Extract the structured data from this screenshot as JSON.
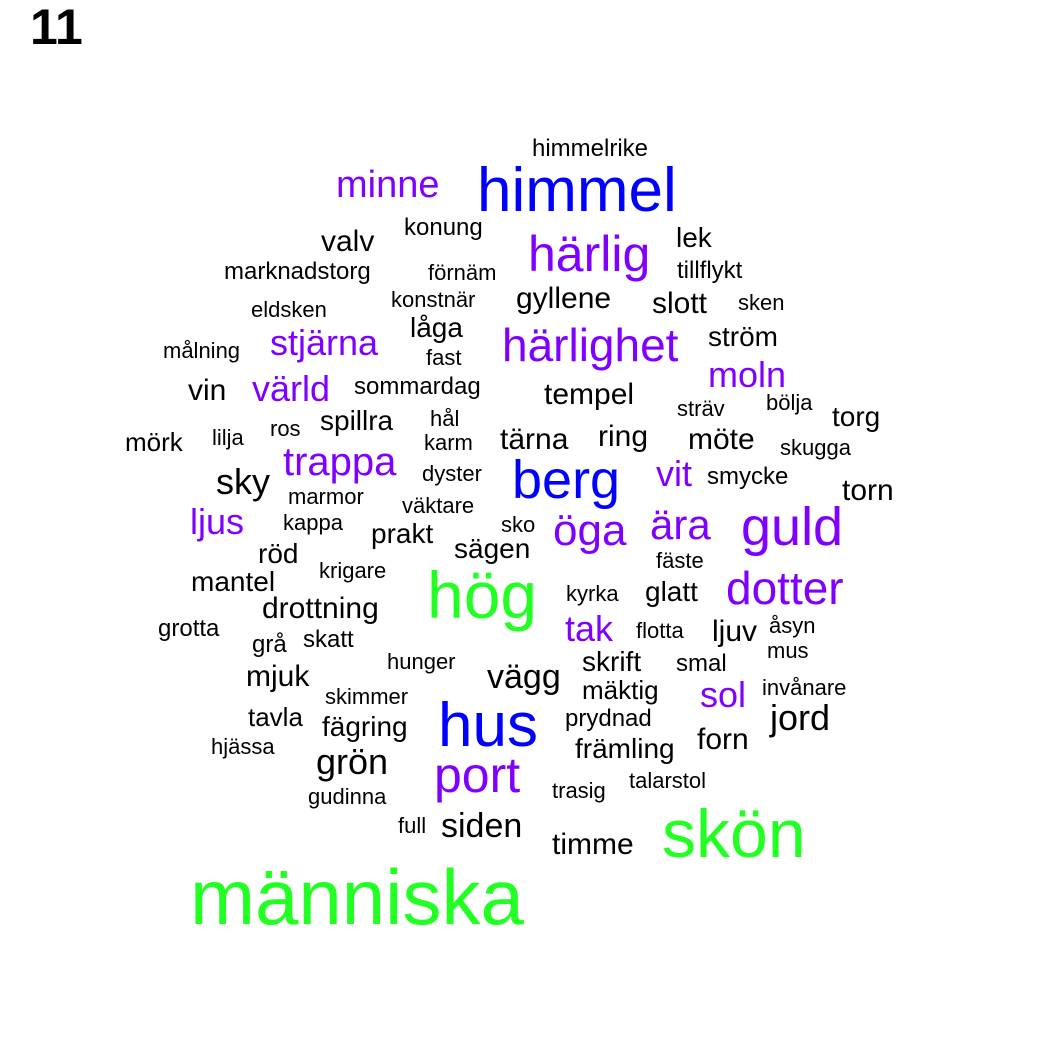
{
  "panel_label": "11",
  "colors": {
    "black": "#000000",
    "purple": "#8000ff",
    "blue": "#0000ff",
    "green": "#22ff22"
  },
  "words": [
    {
      "text": "himmelrike",
      "color": "black"
    },
    {
      "text": "minne",
      "color": "purple"
    },
    {
      "text": "himmel",
      "color": "blue"
    },
    {
      "text": "valv",
      "color": "black"
    },
    {
      "text": "konung",
      "color": "black"
    },
    {
      "text": "härlig",
      "color": "purple"
    },
    {
      "text": "lek",
      "color": "black"
    },
    {
      "text": "marknadstorg",
      "color": "black"
    },
    {
      "text": "förnäm",
      "color": "black"
    },
    {
      "text": "tillflykt",
      "color": "black"
    },
    {
      "text": "konstnär",
      "color": "black"
    },
    {
      "text": "gyllene",
      "color": "black"
    },
    {
      "text": "slott",
      "color": "black"
    },
    {
      "text": "sken",
      "color": "black"
    },
    {
      "text": "eldsken",
      "color": "black"
    },
    {
      "text": "låga",
      "color": "black"
    },
    {
      "text": "stjärna",
      "color": "purple"
    },
    {
      "text": "härlighet",
      "color": "purple"
    },
    {
      "text": "ström",
      "color": "black"
    },
    {
      "text": "målning",
      "color": "black"
    },
    {
      "text": "fast",
      "color": "black"
    },
    {
      "text": "moln",
      "color": "purple"
    },
    {
      "text": "vin",
      "color": "black"
    },
    {
      "text": "värld",
      "color": "purple"
    },
    {
      "text": "sommardag",
      "color": "black"
    },
    {
      "text": "tempel",
      "color": "black"
    },
    {
      "text": "sträv",
      "color": "black"
    },
    {
      "text": "bölja",
      "color": "black"
    },
    {
      "text": "torg",
      "color": "black"
    },
    {
      "text": "spillra",
      "color": "black"
    },
    {
      "text": "hål",
      "color": "black"
    },
    {
      "text": "mörk",
      "color": "black"
    },
    {
      "text": "lilja",
      "color": "black"
    },
    {
      "text": "ros",
      "color": "black"
    },
    {
      "text": "karm",
      "color": "black"
    },
    {
      "text": "tärna",
      "color": "black"
    },
    {
      "text": "ring",
      "color": "black"
    },
    {
      "text": "möte",
      "color": "black"
    },
    {
      "text": "skugga",
      "color": "black"
    },
    {
      "text": "trappa",
      "color": "purple"
    },
    {
      "text": "sky",
      "color": "black"
    },
    {
      "text": "dyster",
      "color": "black"
    },
    {
      "text": "berg",
      "color": "blue"
    },
    {
      "text": "vit",
      "color": "purple"
    },
    {
      "text": "smycke",
      "color": "black"
    },
    {
      "text": "torn",
      "color": "black"
    },
    {
      "text": "marmor",
      "color": "black"
    },
    {
      "text": "väktare",
      "color": "black"
    },
    {
      "text": "ljus",
      "color": "purple"
    },
    {
      "text": "kappa",
      "color": "black"
    },
    {
      "text": "prakt",
      "color": "black"
    },
    {
      "text": "sko",
      "color": "black"
    },
    {
      "text": "öga",
      "color": "purple"
    },
    {
      "text": "ära",
      "color": "purple"
    },
    {
      "text": "guld",
      "color": "purple"
    },
    {
      "text": "röd",
      "color": "black"
    },
    {
      "text": "sägen",
      "color": "black"
    },
    {
      "text": "fäste",
      "color": "black"
    },
    {
      "text": "mantel",
      "color": "black"
    },
    {
      "text": "krigare",
      "color": "black"
    },
    {
      "text": "hög",
      "color": "green"
    },
    {
      "text": "kyrka",
      "color": "black"
    },
    {
      "text": "glatt",
      "color": "black"
    },
    {
      "text": "dotter",
      "color": "purple"
    },
    {
      "text": "drottning",
      "color": "black"
    },
    {
      "text": "grotta",
      "color": "black"
    },
    {
      "text": "tak",
      "color": "purple"
    },
    {
      "text": "flotta",
      "color": "black"
    },
    {
      "text": "ljuv",
      "color": "black"
    },
    {
      "text": "åsyn",
      "color": "black"
    },
    {
      "text": "grå",
      "color": "black"
    },
    {
      "text": "skatt",
      "color": "black"
    },
    {
      "text": "mus",
      "color": "black"
    },
    {
      "text": "hunger",
      "color": "black"
    },
    {
      "text": "skrift",
      "color": "black"
    },
    {
      "text": "smal",
      "color": "black"
    },
    {
      "text": "mjuk",
      "color": "black"
    },
    {
      "text": "vägg",
      "color": "black"
    },
    {
      "text": "skimmer",
      "color": "black"
    },
    {
      "text": "mäktig",
      "color": "black"
    },
    {
      "text": "sol",
      "color": "purple"
    },
    {
      "text": "invånare",
      "color": "black"
    },
    {
      "text": "tavla",
      "color": "black"
    },
    {
      "text": "hus",
      "color": "blue"
    },
    {
      "text": "prydnad",
      "color": "black"
    },
    {
      "text": "jord",
      "color": "black"
    },
    {
      "text": "fägring",
      "color": "black"
    },
    {
      "text": "hjässa",
      "color": "black"
    },
    {
      "text": "främling",
      "color": "black"
    },
    {
      "text": "forn",
      "color": "black"
    },
    {
      "text": "grön",
      "color": "black"
    },
    {
      "text": "port",
      "color": "purple"
    },
    {
      "text": "talarstol",
      "color": "black"
    },
    {
      "text": "trasig",
      "color": "black"
    },
    {
      "text": "gudinna",
      "color": "black"
    },
    {
      "text": "full",
      "color": "black"
    },
    {
      "text": "siden",
      "color": "black"
    },
    {
      "text": "skön",
      "color": "green"
    },
    {
      "text": "timme",
      "color": "black"
    },
    {
      "text": "människa",
      "color": "green"
    }
  ]
}
